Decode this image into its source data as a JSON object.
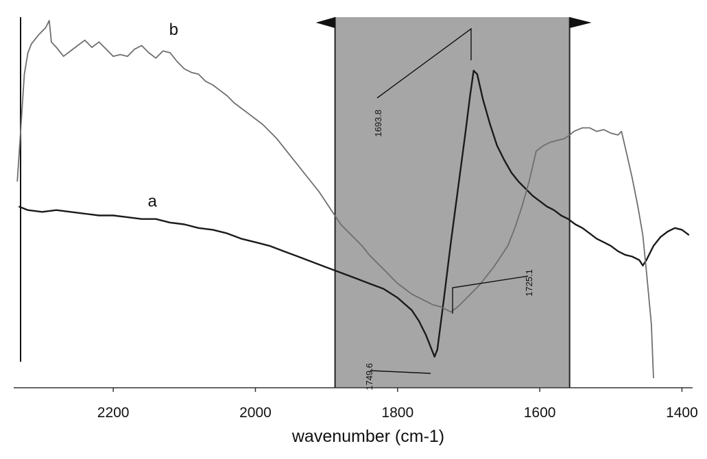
{
  "chart_data": {
    "type": "line",
    "title": "",
    "xlabel": "wavenumber (cm-1)",
    "ylabel": "",
    "x_reversed": true,
    "xlim": [
      2340,
      1385
    ],
    "ylim": [
      0,
      1
    ],
    "xticks": [
      2200,
      2000,
      1800,
      1600,
      1400
    ],
    "grid": false,
    "highlight_region": {
      "x_from": 1888,
      "x_to": 1558,
      "color": "#a6a6a6"
    },
    "colors": {
      "curve_a": "#1a1a1a",
      "curve_b": "#6e6e6e",
      "band": "#a6a6a6"
    },
    "series": [
      {
        "name": "a",
        "x": [
          2333,
          2320,
          2300,
          2280,
          2260,
          2240,
          2220,
          2200,
          2180,
          2160,
          2140,
          2120,
          2100,
          2080,
          2060,
          2040,
          2020,
          2000,
          1980,
          1960,
          1940,
          1920,
          1900,
          1880,
          1860,
          1840,
          1820,
          1800,
          1780,
          1770,
          1760,
          1752,
          1748,
          1744,
          1735,
          1725,
          1715,
          1705,
          1698,
          1693,
          1688,
          1680,
          1670,
          1660,
          1650,
          1640,
          1630,
          1620,
          1610,
          1600,
          1590,
          1580,
          1570,
          1560,
          1550,
          1540,
          1530,
          1520,
          1510,
          1500,
          1490,
          1480,
          1470,
          1460,
          1455,
          1450,
          1440,
          1430,
          1420,
          1410,
          1400,
          1390
        ],
        "y": [
          0.48,
          0.47,
          0.465,
          0.47,
          0.465,
          0.46,
          0.455,
          0.455,
          0.45,
          0.445,
          0.445,
          0.435,
          0.43,
          0.42,
          0.415,
          0.405,
          0.39,
          0.38,
          0.37,
          0.355,
          0.34,
          0.325,
          0.31,
          0.295,
          0.28,
          0.265,
          0.25,
          0.225,
          0.19,
          0.16,
          0.12,
          0.08,
          0.06,
          0.08,
          0.22,
          0.38,
          0.53,
          0.68,
          0.79,
          0.86,
          0.85,
          0.78,
          0.71,
          0.65,
          0.61,
          0.575,
          0.55,
          0.53,
          0.51,
          0.495,
          0.48,
          0.47,
          0.455,
          0.445,
          0.43,
          0.42,
          0.405,
          0.39,
          0.38,
          0.37,
          0.355,
          0.345,
          0.34,
          0.33,
          0.315,
          0.33,
          0.37,
          0.395,
          0.41,
          0.42,
          0.415,
          0.4
        ]
      },
      {
        "name": "b",
        "x": [
          2335,
          2330,
          2325,
          2320,
          2315,
          2305,
          2295,
          2290,
          2287,
          2280,
          2270,
          2260,
          2250,
          2240,
          2230,
          2220,
          2210,
          2200,
          2190,
          2180,
          2170,
          2160,
          2150,
          2140,
          2130,
          2120,
          2110,
          2100,
          2090,
          2080,
          2070,
          2060,
          2050,
          2040,
          2030,
          2020,
          2010,
          2000,
          1990,
          1980,
          1970,
          1960,
          1950,
          1940,
          1930,
          1920,
          1910,
          1900,
          1890,
          1880,
          1870,
          1860,
          1850,
          1840,
          1830,
          1820,
          1810,
          1800,
          1790,
          1780,
          1770,
          1760,
          1750,
          1740,
          1730,
          1725,
          1715,
          1705,
          1695,
          1685,
          1675,
          1665,
          1655,
          1645,
          1635,
          1625,
          1615,
          1605,
          1595,
          1585,
          1575,
          1565,
          1558,
          1552,
          1540,
          1530,
          1520,
          1510,
          1500,
          1490,
          1485,
          1478,
          1470,
          1462,
          1455,
          1450,
          1443,
          1440
        ],
        "y": [
          0.55,
          0.7,
          0.85,
          0.91,
          0.935,
          0.96,
          0.98,
          1.0,
          0.94,
          0.925,
          0.9,
          0.915,
          0.93,
          0.945,
          0.925,
          0.94,
          0.92,
          0.9,
          0.905,
          0.9,
          0.92,
          0.93,
          0.91,
          0.895,
          0.915,
          0.91,
          0.885,
          0.865,
          0.855,
          0.85,
          0.83,
          0.82,
          0.805,
          0.79,
          0.77,
          0.755,
          0.74,
          0.725,
          0.71,
          0.69,
          0.67,
          0.645,
          0.62,
          0.595,
          0.57,
          0.545,
          0.52,
          0.49,
          0.46,
          0.43,
          0.41,
          0.39,
          0.37,
          0.345,
          0.325,
          0.305,
          0.285,
          0.265,
          0.25,
          0.235,
          0.225,
          0.215,
          0.205,
          0.2,
          0.19,
          0.185,
          0.2,
          0.22,
          0.24,
          0.26,
          0.285,
          0.31,
          0.34,
          0.37,
          0.42,
          0.48,
          0.55,
          0.635,
          0.65,
          0.66,
          0.665,
          0.67,
          0.68,
          0.69,
          0.7,
          0.7,
          0.69,
          0.695,
          0.685,
          0.68,
          0.69,
          0.63,
          0.56,
          0.48,
          0.4,
          0.3,
          0.15,
          0.0
        ]
      }
    ],
    "curve_labels": [
      {
        "text": "a",
        "x": 2145,
        "y": 0.48
      },
      {
        "text": "b",
        "x": 2115,
        "y": 0.96
      }
    ],
    "annotations": [
      {
        "text": "1693.8",
        "x": 1693.8
      },
      {
        "text": "1725.1",
        "x": 1725.1
      },
      {
        "text": "1749.6",
        "x": 1749.6
      }
    ]
  }
}
